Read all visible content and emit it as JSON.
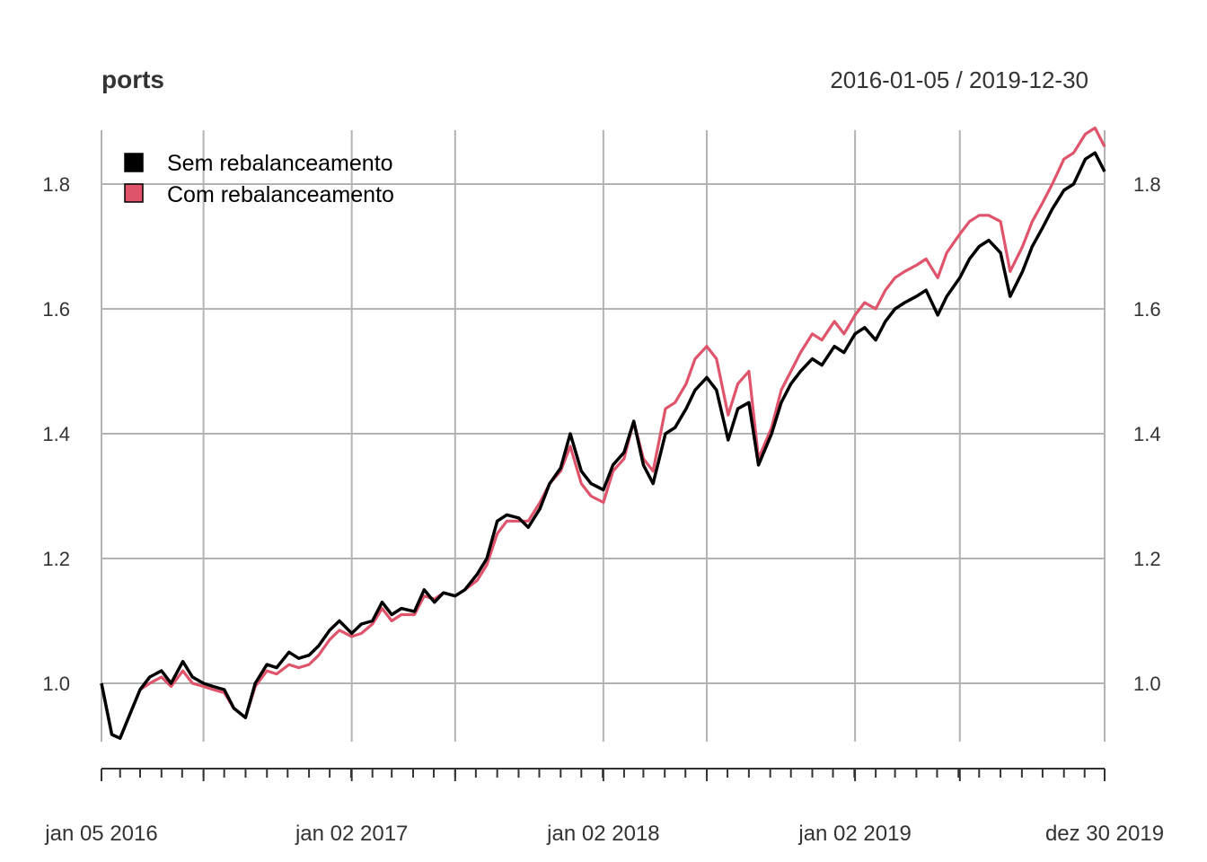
{
  "chart_data": {
    "type": "line",
    "title": "ports",
    "date_range": "2016-01-05 / 2019-12-30",
    "xlabel": "",
    "ylabel": "",
    "ylim": [
      0.91,
      1.88
    ],
    "xlim": [
      "2016-01-05",
      "2019-12-30"
    ],
    "yticks": [
      "1.0",
      "1.2",
      "1.4",
      "1.6",
      "1.8"
    ],
    "xticks": [
      "jan 05 2016",
      "jan 02 2017",
      "jan 02 2018",
      "jan 02 2019",
      "dez 30 2019"
    ],
    "grid": true,
    "legend_position": "top-left",
    "x": [
      "2016-01-05",
      "2016-01-20",
      "2016-02-01",
      "2016-02-15",
      "2016-03-01",
      "2016-03-15",
      "2016-04-01",
      "2016-04-15",
      "2016-05-02",
      "2016-05-16",
      "2016-06-01",
      "2016-06-15",
      "2016-07-01",
      "2016-07-15",
      "2016-08-01",
      "2016-08-15",
      "2016-09-01",
      "2016-09-15",
      "2016-10-03",
      "2016-10-17",
      "2016-11-01",
      "2016-11-15",
      "2016-12-01",
      "2016-12-15",
      "2017-01-02",
      "2017-01-16",
      "2017-02-01",
      "2017-02-15",
      "2017-03-01",
      "2017-03-15",
      "2017-04-03",
      "2017-04-17",
      "2017-05-02",
      "2017-05-15",
      "2017-06-01",
      "2017-06-15",
      "2017-07-03",
      "2017-07-17",
      "2017-08-01",
      "2017-08-15",
      "2017-09-01",
      "2017-09-15",
      "2017-10-02",
      "2017-10-16",
      "2017-11-01",
      "2017-11-15",
      "2017-12-01",
      "2017-12-15",
      "2018-01-02",
      "2018-01-16",
      "2018-02-01",
      "2018-02-15",
      "2018-03-01",
      "2018-03-15",
      "2018-04-02",
      "2018-04-16",
      "2018-05-02",
      "2018-05-15",
      "2018-06-01",
      "2018-06-15",
      "2018-07-02",
      "2018-07-16",
      "2018-08-01",
      "2018-08-15",
      "2018-09-03",
      "2018-09-17",
      "2018-10-01",
      "2018-10-15",
      "2018-11-01",
      "2018-11-15",
      "2018-12-03",
      "2018-12-17",
      "2019-01-02",
      "2019-01-16",
      "2019-02-01",
      "2019-02-15",
      "2019-03-01",
      "2019-03-15",
      "2019-04-01",
      "2019-04-15",
      "2019-05-02",
      "2019-05-15",
      "2019-06-03",
      "2019-06-17",
      "2019-07-01",
      "2019-07-15",
      "2019-08-01",
      "2019-08-15",
      "2019-09-02",
      "2019-09-16",
      "2019-10-01",
      "2019-10-15",
      "2019-11-01",
      "2019-11-15",
      "2019-12-02",
      "2019-12-16",
      "2019-12-30"
    ],
    "series": [
      {
        "name": "Sem rebalanceamento",
        "color": "#000000",
        "values": [
          1.0,
          0.918,
          0.912,
          0.95,
          0.99,
          1.01,
          1.02,
          1.0,
          1.035,
          1.01,
          1.0,
          0.995,
          0.99,
          0.96,
          0.945,
          1.0,
          1.03,
          1.025,
          1.05,
          1.04,
          1.045,
          1.06,
          1.085,
          1.1,
          1.08,
          1.095,
          1.1,
          1.13,
          1.11,
          1.12,
          1.115,
          1.15,
          1.13,
          1.145,
          1.14,
          1.15,
          1.175,
          1.2,
          1.26,
          1.27,
          1.265,
          1.25,
          1.28,
          1.32,
          1.345,
          1.4,
          1.34,
          1.32,
          1.31,
          1.35,
          1.37,
          1.42,
          1.35,
          1.32,
          1.4,
          1.41,
          1.44,
          1.47,
          1.49,
          1.47,
          1.39,
          1.44,
          1.45,
          1.35,
          1.4,
          1.45,
          1.48,
          1.5,
          1.52,
          1.51,
          1.54,
          1.53,
          1.56,
          1.57,
          1.55,
          1.58,
          1.6,
          1.61,
          1.62,
          1.63,
          1.59,
          1.62,
          1.65,
          1.68,
          1.7,
          1.71,
          1.69,
          1.62,
          1.66,
          1.7,
          1.73,
          1.76,
          1.79,
          1.8,
          1.84,
          1.85,
          1.82
        ]
      },
      {
        "name": "Com rebalanceamento",
        "color": "#DF536B",
        "values": [
          1.0,
          0.918,
          0.912,
          0.95,
          0.99,
          1.0,
          1.01,
          0.995,
          1.02,
          1.0,
          0.995,
          0.99,
          0.985,
          0.96,
          0.945,
          0.995,
          1.02,
          1.015,
          1.03,
          1.025,
          1.03,
          1.045,
          1.07,
          1.085,
          1.075,
          1.08,
          1.095,
          1.12,
          1.1,
          1.11,
          1.11,
          1.14,
          1.135,
          1.145,
          1.14,
          1.15,
          1.165,
          1.19,
          1.24,
          1.26,
          1.26,
          1.26,
          1.29,
          1.32,
          1.34,
          1.38,
          1.32,
          1.3,
          1.29,
          1.34,
          1.36,
          1.42,
          1.36,
          1.34,
          1.44,
          1.45,
          1.48,
          1.52,
          1.54,
          1.52,
          1.43,
          1.48,
          1.5,
          1.36,
          1.41,
          1.47,
          1.5,
          1.53,
          1.56,
          1.55,
          1.58,
          1.56,
          1.59,
          1.61,
          1.6,
          1.63,
          1.65,
          1.66,
          1.67,
          1.68,
          1.65,
          1.69,
          1.72,
          1.74,
          1.75,
          1.75,
          1.74,
          1.66,
          1.7,
          1.74,
          1.77,
          1.8,
          1.84,
          1.85,
          1.88,
          1.89,
          1.86
        ]
      }
    ]
  }
}
